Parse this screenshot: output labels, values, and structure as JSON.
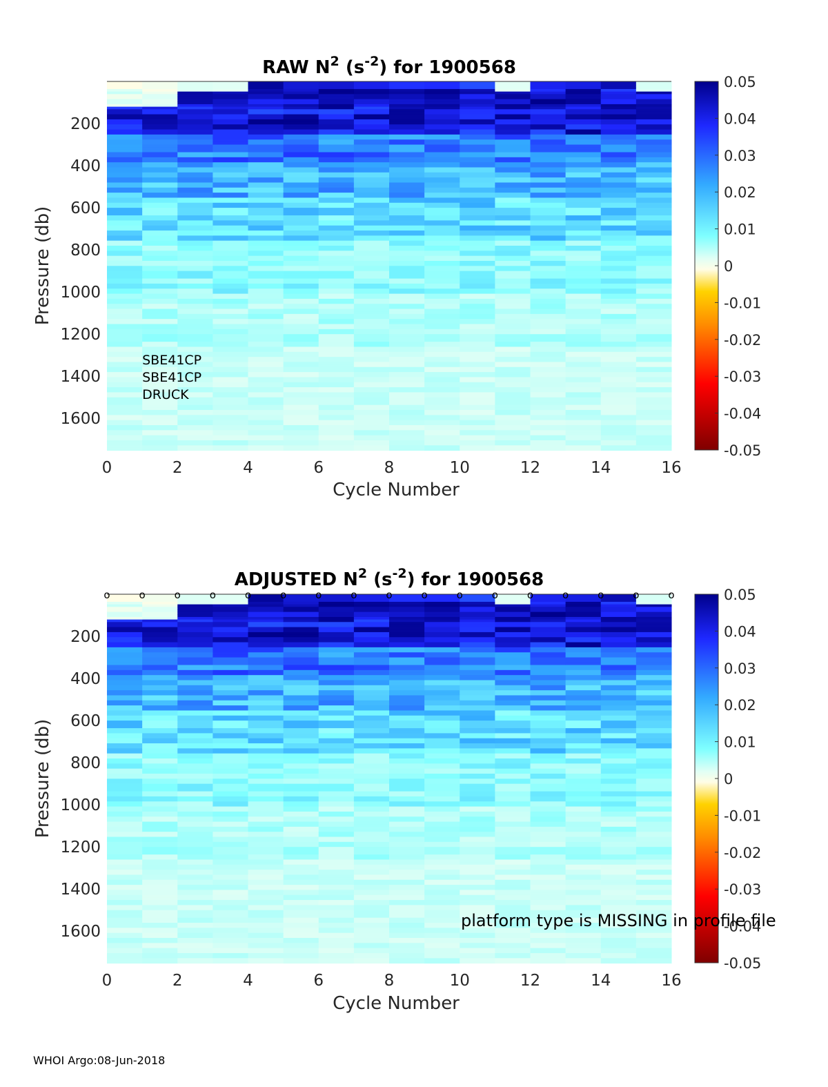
{
  "footer": "WHOI Argo:08-Jun-2018",
  "colors": {
    "scale": [
      "#7f0000",
      "#ff0000",
      "#ff8c00",
      "#ffd200",
      "#fffde6",
      "#e0fff5",
      "#7fffff",
      "#33aaff",
      "#1e28ff",
      "#00008b"
    ]
  },
  "chart_data": [
    {
      "type": "heatmap",
      "title_prefix": "RAW N",
      "title_sup1": "2",
      "title_mid": " (s",
      "title_sup2": "-2",
      "title_suffix": ") for 1900568",
      "xlabel": "Cycle Number",
      "ylabel": "Pressure (db)",
      "x_ticks": [
        "0",
        "2",
        "4",
        "6",
        "8",
        "10",
        "12",
        "14",
        "16"
      ],
      "y_ticks": [
        "200",
        "400",
        "600",
        "800",
        "1000",
        "1200",
        "1400",
        "1600"
      ],
      "colorbar_ticks": [
        "0.05",
        "0.04",
        "0.03",
        "0.02",
        "0.01",
        "0",
        "-0.01",
        "-0.02",
        "-0.03",
        "-0.04",
        "-0.05"
      ],
      "xlim": [
        0,
        16
      ],
      "ylim": [
        1750,
        0
      ],
      "clim": [
        -0.05,
        0.05
      ],
      "cycles": [
        0,
        1,
        2,
        3,
        4,
        5,
        6,
        7,
        8,
        9,
        10,
        11,
        12,
        13,
        14,
        15,
        16
      ],
      "annotations": [
        "SBE41CP",
        "SBE41CP",
        "DRUCK"
      ],
      "qc_markers": false,
      "warning": ""
    },
    {
      "type": "heatmap",
      "title_prefix": "ADJUSTED N",
      "title_sup1": "2",
      "title_mid": " (s",
      "title_sup2": "-2",
      "title_suffix": ") for 1900568",
      "xlabel": "Cycle Number",
      "ylabel": "Pressure (db)",
      "x_ticks": [
        "0",
        "2",
        "4",
        "6",
        "8",
        "10",
        "12",
        "14",
        "16"
      ],
      "y_ticks": [
        "200",
        "400",
        "600",
        "800",
        "1000",
        "1200",
        "1400",
        "1600"
      ],
      "colorbar_ticks": [
        "0.05",
        "0.04",
        "0.03",
        "0.02",
        "0.01",
        "0",
        "-0.01",
        "-0.02",
        "-0.03",
        "-0.04",
        "-0.05"
      ],
      "xlim": [
        0,
        16
      ],
      "ylim": [
        1750,
        0
      ],
      "clim": [
        -0.05,
        0.05
      ],
      "cycles": [
        0,
        1,
        2,
        3,
        4,
        5,
        6,
        7,
        8,
        9,
        10,
        11,
        12,
        13,
        14,
        15,
        16
      ],
      "annotations": [],
      "qc_markers": true,
      "qc_marker_text": "o",
      "warning": "platform type is MISSING in profile file"
    }
  ]
}
